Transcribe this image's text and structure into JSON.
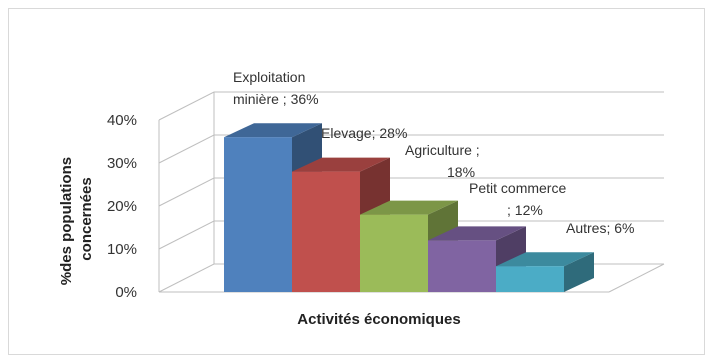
{
  "chart_data": {
    "type": "bar",
    "categories": [
      "Exploitation minière",
      "Elevage",
      "Agriculture",
      "Petit commerce",
      "Autres"
    ],
    "values": [
      36,
      28,
      18,
      12,
      6
    ],
    "data_labels": [
      [
        "Exploitation",
        "minière ; 36%"
      ],
      [
        "Elevage; 28%"
      ],
      [
        "Agriculture ;",
        "18%"
      ],
      [
        "Petit commerce",
        "; 12%"
      ],
      [
        "Autres; 6%"
      ]
    ],
    "xlabel": "Activités économiques",
    "ylabel": [
      "%des populations",
      "concernées"
    ],
    "ylim": [
      0,
      40
    ],
    "yticks": [
      0,
      10,
      20,
      30,
      40
    ],
    "ytick_labels": [
      "0%",
      "10%",
      "20%",
      "30%",
      "40%"
    ],
    "grid": true,
    "three_d": true,
    "colors": {
      "Exploitation minière": "#4f81bd",
      "Elevage": "#c0504d",
      "Agriculture": "#9bbb59",
      "Petit commerce": "#8064a2",
      "Autres": "#4bacc6"
    }
  }
}
